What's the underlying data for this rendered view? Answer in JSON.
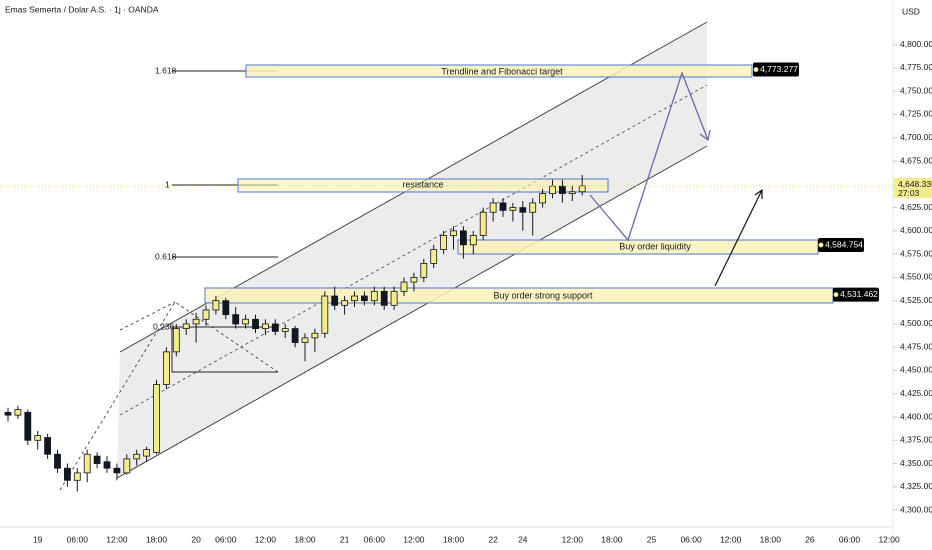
{
  "header": {
    "title": "Emas Semerta / Dolar A.S. · 1j · OANDA",
    "currency": "USD"
  },
  "chart_data": {
    "type": "candlestick",
    "x": [
      null,
      null,
      null,
      "19",
      null,
      null,
      null,
      "06:00",
      null,
      null,
      null,
      "12:00",
      null,
      null,
      null,
      "18:00",
      null,
      null,
      null,
      "20",
      null,
      null,
      "06:00",
      null,
      null,
      null,
      "12:00",
      null,
      null,
      null,
      "18:00",
      null,
      null,
      null,
      "21",
      null,
      null,
      "06:00",
      null,
      null,
      null,
      "12:00",
      null,
      null,
      null,
      "18:00",
      null,
      null,
      null,
      "22",
      null,
      null,
      "24",
      null,
      null,
      null,
      null,
      "12:00",
      null,
      null,
      null,
      "18:00",
      null,
      null,
      null,
      "25",
      null,
      null,
      null,
      "06:00",
      null,
      null,
      null,
      "12:00",
      null,
      null,
      null,
      "18:00",
      null,
      null,
      null,
      "26",
      null,
      null,
      null,
      "06:00",
      null,
      null,
      null,
      "12:00"
    ],
    "open": [
      4405,
      4402,
      4405,
      4375,
      4378,
      4360,
      4345,
      4332,
      4340,
      4358,
      4352,
      4345,
      4340,
      4355,
      4358,
      4362,
      4435,
      4470,
      4495,
      4500,
      4505,
      4515,
      4525,
      4510,
      4500,
      4505,
      4495,
      4500,
      4492,
      4495,
      4480,
      4485,
      4490,
      4530,
      4520,
      4525,
      4530,
      4525,
      4535,
      4520,
      4535,
      4545,
      4550,
      4565,
      4580,
      4595,
      4600,
      4585,
      4595,
      4620,
      4630,
      4622,
      4625,
      4620,
      4630,
      4640,
      4648,
      4640,
      4642,
      null,
      null,
      null,
      null,
      null,
      null,
      null,
      null,
      null,
      null,
      null,
      null,
      null,
      null,
      null,
      null,
      null,
      null,
      null,
      null,
      null,
      null,
      null,
      null,
      null,
      null,
      null,
      null,
      null,
      null,
      null
    ],
    "high": [
      4410,
      4412,
      4408,
      4385,
      4382,
      4365,
      4350,
      4345,
      4365,
      4362,
      4358,
      4350,
      4360,
      4365,
      4368,
      4440,
      4475,
      4500,
      4505,
      4512,
      4520,
      4530,
      4528,
      4518,
      4510,
      4510,
      4505,
      4505,
      4500,
      4498,
      4490,
      4495,
      4535,
      4540,
      4530,
      4535,
      4535,
      4540,
      4540,
      4540,
      4550,
      4555,
      4570,
      4585,
      4600,
      4605,
      4605,
      4600,
      4625,
      4635,
      4635,
      4630,
      4632,
      4635,
      4645,
      4655,
      4655,
      4648,
      4660,
      null,
      null,
      null,
      null,
      null,
      null,
      null,
      null,
      null,
      null,
      null,
      null,
      null,
      null,
      null,
      null,
      null,
      null,
      null,
      null,
      null,
      null,
      null,
      null,
      null,
      null,
      null,
      null,
      null,
      null,
      null
    ],
    "low": [
      4395,
      4398,
      4370,
      4365,
      4355,
      4340,
      4325,
      4320,
      4330,
      4345,
      4340,
      4332,
      4338,
      4348,
      4352,
      4360,
      4430,
      4465,
      4488,
      4480,
      4498,
      4510,
      4505,
      4495,
      4495,
      4490,
      4488,
      4488,
      4485,
      4475,
      4460,
      4470,
      4485,
      4515,
      4510,
      4518,
      4520,
      4520,
      4515,
      4515,
      4530,
      4535,
      4545,
      4560,
      4575,
      4580,
      4570,
      4575,
      4590,
      4610,
      4615,
      4610,
      4600,
      4595,
      4625,
      4635,
      4630,
      4632,
      4638,
      null,
      null,
      null,
      null,
      null,
      null,
      null,
      null,
      null,
      null,
      null,
      null,
      null,
      null,
      null,
      null,
      null,
      null,
      null,
      null,
      null,
      null,
      null,
      null,
      null,
      null,
      null,
      null,
      null,
      null,
      null
    ],
    "close": [
      4402,
      4408,
      4375,
      4380,
      4360,
      4345,
      4332,
      4340,
      4360,
      4350,
      4345,
      4340,
      4355,
      4360,
      4365,
      4435,
      4470,
      4495,
      4500,
      4505,
      4515,
      4525,
      4510,
      4500,
      4505,
      4495,
      4500,
      4492,
      4495,
      4480,
      4485,
      4490,
      4530,
      4520,
      4525,
      4530,
      4525,
      4535,
      4520,
      4535,
      4545,
      4550,
      4565,
      4580,
      4595,
      4600,
      4585,
      4595,
      4620,
      4630,
      4622,
      4625,
      4620,
      4630,
      4640,
      4648,
      4640,
      4642,
      4648.335,
      null,
      null,
      null,
      null,
      null,
      null,
      null,
      null,
      null,
      null,
      null,
      null,
      null,
      null,
      null,
      null,
      null,
      null,
      null,
      null,
      null,
      null,
      null,
      null,
      null,
      null,
      null,
      null,
      null,
      null,
      null
    ],
    "up_color": "#f4ec8a",
    "down_color": "#131722",
    "ylim": [
      4284,
      4848
    ],
    "yticks": [
      {
        "value": 4300,
        "label": "4,300.000"
      },
      {
        "value": 4325,
        "label": "4,325.000"
      },
      {
        "value": 4350,
        "label": "4,350.000"
      },
      {
        "value": 4375,
        "label": "4,375.000"
      },
      {
        "value": 4400,
        "label": "4,400.000"
      },
      {
        "value": 4425,
        "label": "4,425.000"
      },
      {
        "value": 4450,
        "label": "4,450.000"
      },
      {
        "value": 4475,
        "label": "4,475.000"
      },
      {
        "value": 4500,
        "label": "4,500.000"
      },
      {
        "value": 4525,
        "label": "4,525.000"
      },
      {
        "value": 4550,
        "label": "4,550.000"
      },
      {
        "value": 4575,
        "label": "4,575.000"
      },
      {
        "value": 4600,
        "label": "4,600.000"
      },
      {
        "value": 4625,
        "label": "4,625.000"
      },
      {
        "value": 4650,
        "label": "4,650.000"
      },
      {
        "value": 4675,
        "label": "4,675.000"
      },
      {
        "value": 4700,
        "label": "4,700.000"
      },
      {
        "value": 4725,
        "label": "4,725.000"
      },
      {
        "value": 4750,
        "label": "4,750.000"
      },
      {
        "value": 4775,
        "label": "4,775.000"
      },
      {
        "value": 4800,
        "label": "4,800.000"
      }
    ],
    "fib_labels": [
      "1.618",
      "1",
      "0.618",
      "0.236"
    ],
    "zones": [
      "Trendline and Fibonacci target",
      "resistance",
      "Buy order liquidity",
      "Buy order strong support"
    ],
    "price_tags": [
      {
        "value": 4773.277,
        "label": "4,773.277"
      },
      {
        "value": 4584.754,
        "label": "4,584.754"
      },
      {
        "value": 4531.462,
        "label": "4,531.462"
      }
    ],
    "last_price": {
      "value": 4648.335,
      "label": "4,648.335",
      "countdown": "27:03"
    }
  }
}
